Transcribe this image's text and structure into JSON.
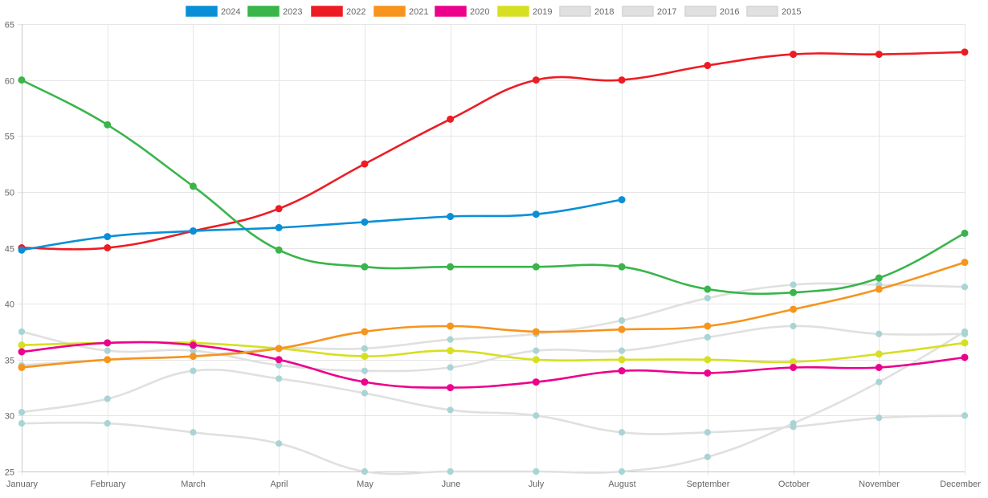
{
  "chart_data": {
    "type": "line",
    "title": "",
    "xlabel": "",
    "ylabel": "",
    "ylim": [
      25,
      65
    ],
    "yticks": [
      25,
      30,
      35,
      40,
      45,
      50,
      55,
      60,
      65
    ],
    "grid": true,
    "legend_position": "top",
    "categories": [
      "January",
      "February",
      "March",
      "April",
      "May",
      "June",
      "July",
      "August",
      "September",
      "October",
      "November",
      "December"
    ],
    "series": [
      {
        "name": "2024",
        "color": "#0a8fd6",
        "highlighted": true,
        "values": [
          44.8,
          46.0,
          46.5,
          46.8,
          47.3,
          47.8,
          48.0,
          49.3,
          null,
          null,
          null,
          null
        ]
      },
      {
        "name": "2023",
        "color": "#39b54a",
        "highlighted": true,
        "values": [
          60.0,
          56.0,
          50.5,
          44.8,
          43.3,
          43.3,
          43.3,
          43.3,
          41.3,
          41.0,
          42.3,
          46.3
        ]
      },
      {
        "name": "2022",
        "color": "#ed1c24",
        "highlighted": true,
        "values": [
          45.0,
          45.0,
          46.5,
          48.5,
          52.5,
          56.5,
          60.0,
          60.0,
          61.3,
          62.3,
          62.3,
          62.5
        ]
      },
      {
        "name": "2021",
        "color": "#f7941d",
        "highlighted": true,
        "values": [
          34.3,
          35.0,
          35.3,
          36.0,
          37.5,
          38.0,
          37.5,
          37.7,
          38.0,
          39.5,
          41.3,
          43.7
        ]
      },
      {
        "name": "2020",
        "color": "#ec008c",
        "highlighted": true,
        "values": [
          35.7,
          36.5,
          36.3,
          35.0,
          33.0,
          32.5,
          33.0,
          34.0,
          33.8,
          34.3,
          34.3,
          35.2
        ]
      },
      {
        "name": "2019",
        "color": "#d7df23",
        "highlighted": true,
        "values": [
          36.3,
          36.5,
          36.5,
          36.0,
          35.3,
          35.8,
          35.0,
          35.0,
          35.0,
          34.8,
          35.5,
          36.5
        ]
      },
      {
        "name": "2018",
        "color": "#e0e0e0",
        "highlighted": false,
        "values": [
          37.5,
          35.8,
          35.8,
          34.5,
          34.0,
          34.3,
          35.8,
          35.8,
          37.0,
          38.0,
          37.3,
          37.3
        ]
      },
      {
        "name": "2017",
        "color": "#e0e0e0",
        "highlighted": false,
        "values": [
          34.5,
          35.0,
          35.3,
          36.0,
          36.0,
          36.8,
          37.3,
          38.5,
          40.5,
          41.7,
          41.7,
          41.5
        ]
      },
      {
        "name": "2016",
        "color": "#e0e0e0",
        "highlighted": false,
        "values": [
          30.3,
          31.5,
          34.0,
          33.3,
          32.0,
          30.5,
          30.0,
          28.5,
          28.5,
          29.0,
          29.8,
          30.0
        ]
      },
      {
        "name": "2015",
        "color": "#e0e0e0",
        "highlighted": false,
        "values": [
          29.3,
          29.3,
          28.5,
          27.5,
          25.0,
          25.0,
          25.0,
          25.0,
          26.3,
          29.3,
          33.0,
          37.5
        ]
      }
    ],
    "muted_point_color": "#a9d4d6",
    "grid_color": "#e6e6e6",
    "axis_color": "#c8c8c8",
    "tick_label_color": "#666666"
  }
}
